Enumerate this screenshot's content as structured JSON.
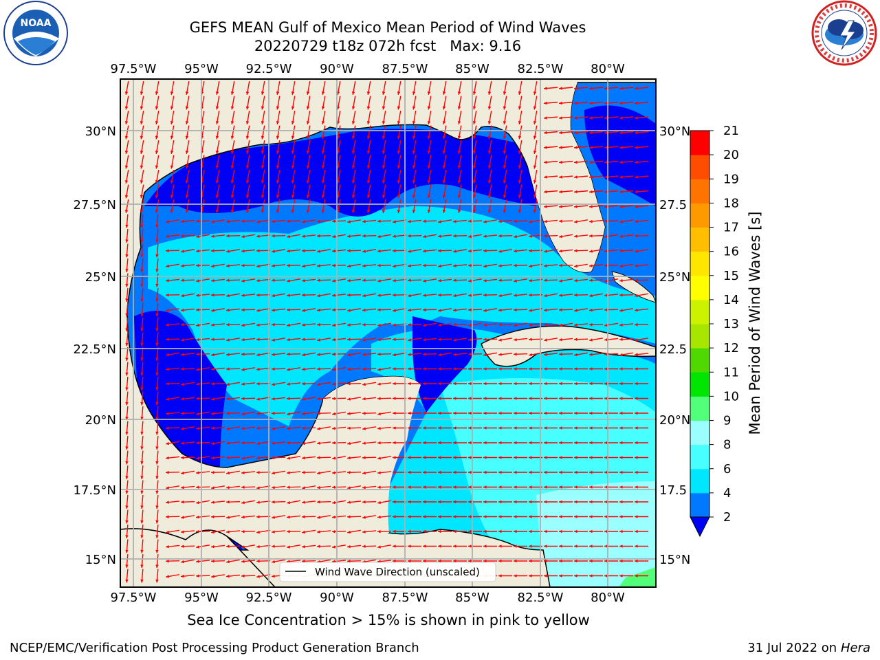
{
  "header": {
    "title_line1": "GEFS MEAN Gulf of Mexico Mean Period of Wind Waves",
    "title_line2": "20220729 t18z 072h fcst   Max: 9.16"
  },
  "logos": {
    "left": {
      "text": "NOAA",
      "ring_text": "NATIONAL OCEANIC AND ATMOSPHERIC ADMINISTRATION · U.S. DEPARTMENT OF COMMERCE"
    },
    "right": {
      "ring_text": "NATIONAL WEATHER SERVICE"
    }
  },
  "map": {
    "lon_labels": [
      "97.5°W",
      "95°W",
      "92.5°W",
      "90°W",
      "87.5°W",
      "85°W",
      "82.5°W",
      "80°W"
    ],
    "lat_labels_left": [
      "30°N",
      "27.5°N",
      "25°N",
      "22.5°N",
      "20°N",
      "17.5°N",
      "15°N"
    ],
    "lat_labels_right": [
      "30°N",
      "27.5",
      "25°N",
      "22.5",
      "20°N",
      "17.5",
      "15°N"
    ],
    "land_color": "#efecdc",
    "legend_label": "Wind Wave Direction (unscaled)",
    "arrow_color": "#ff0000"
  },
  "colorbar": {
    "label": "Mean Period of Wind Waves [s]",
    "ticks": [
      "2",
      "4",
      "6",
      "8",
      "9",
      "10",
      "11",
      "12",
      "13",
      "14",
      "15",
      "16",
      "17",
      "18",
      "19",
      "20",
      "21"
    ],
    "colors": [
      "#0079ff",
      "#00e6ff",
      "#47ffff",
      "#9cffff",
      "#52ff7a",
      "#00e600",
      "#4fd900",
      "#a6e600",
      "#ccf200",
      "#ffff00",
      "#ffe600",
      "#ffbf00",
      "#ff9900",
      "#ff7300",
      "#ff4d00",
      "#ff0000"
    ],
    "extend_color": "#0000f5"
  },
  "caption": "Sea Ice Concentration > 15% is shown in pink to yellow",
  "footer": {
    "left": "NCEP/EMC/Verification Post Processing Product Generation Branch",
    "date": "31 Jul 2022 on ",
    "machine": "Hera"
  }
}
